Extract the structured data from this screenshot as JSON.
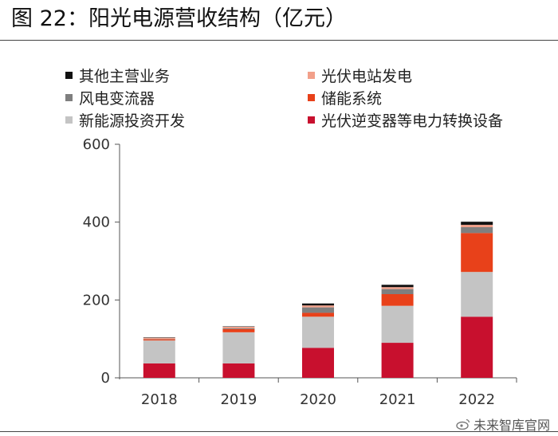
{
  "figure": {
    "title": "图 22：阳光电源营收结构（亿元）",
    "watermark": "未来智库官网"
  },
  "chart_data": {
    "type": "bar",
    "stacked": true,
    "categories": [
      "2018",
      "2019",
      "2020",
      "2021",
      "2022"
    ],
    "ylim": [
      0,
      600
    ],
    "yticks": [
      0,
      200,
      400,
      600
    ],
    "grid": false,
    "legend_position": "top",
    "series": [
      {
        "name": "光伏逆变器等电力转换设备",
        "color": "#c8102e",
        "values": [
          37,
          37,
          77,
          90,
          157
        ]
      },
      {
        "name": "新能源投资开发",
        "color": "#c4c4c4",
        "values": [
          59,
          80,
          80,
          95,
          115
        ]
      },
      {
        "name": "储能系统",
        "color": "#e8411a",
        "values": [
          3,
          8,
          10,
          30,
          100
        ]
      },
      {
        "name": "风电变流器",
        "color": "#7f7f7f",
        "values": [
          1,
          2,
          14,
          13,
          15
        ]
      },
      {
        "name": "光伏电站发电",
        "color": "#f2a08a",
        "values": [
          3,
          4,
          5,
          5,
          6
        ]
      },
      {
        "name": "其他主营业务",
        "color": "#111111",
        "values": [
          1,
          1,
          5,
          6,
          8
        ]
      }
    ]
  },
  "legend": {
    "order": [
      5,
      4,
      3,
      2,
      1,
      0
    ]
  }
}
